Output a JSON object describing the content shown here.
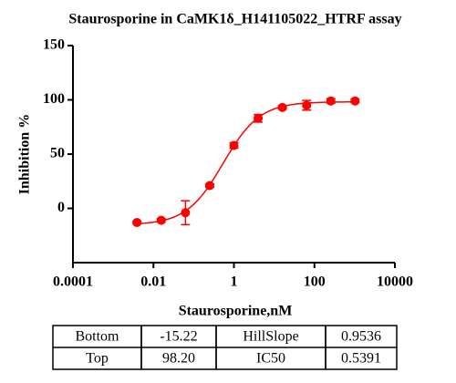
{
  "chart_data": {
    "type": "scatter",
    "title": "Staurosporine in CaMK1δ_H141105022_HTRF assay",
    "x_label": "Staurosporine,nM",
    "y_label": "Inhibition %",
    "x": [
      0.0039,
      0.0156,
      0.0625,
      0.25,
      1,
      4,
      16,
      64,
      256,
      1024
    ],
    "values": [
      -13,
      -11,
      -4,
      21,
      58,
      83,
      93,
      95,
      99,
      99
    ],
    "errors": [
      1,
      1.5,
      11,
      1.5,
      2.5,
      3.5,
      1.5,
      4.5,
      2,
      1.5
    ],
    "color": "#ff0000",
    "xscale": "log",
    "xlim": [
      0.0001,
      10000
    ],
    "xticks": [
      0.0001,
      0.01,
      1,
      100,
      10000
    ],
    "ylim": [
      -50,
      150
    ],
    "yticks": [
      0,
      50,
      100,
      150
    ]
  },
  "table": {
    "rows": [
      [
        "Bottom",
        "-15.22",
        "HillSlope",
        "0.9536"
      ],
      [
        "Top",
        "98.20",
        "IC50",
        "0.5391"
      ]
    ]
  }
}
